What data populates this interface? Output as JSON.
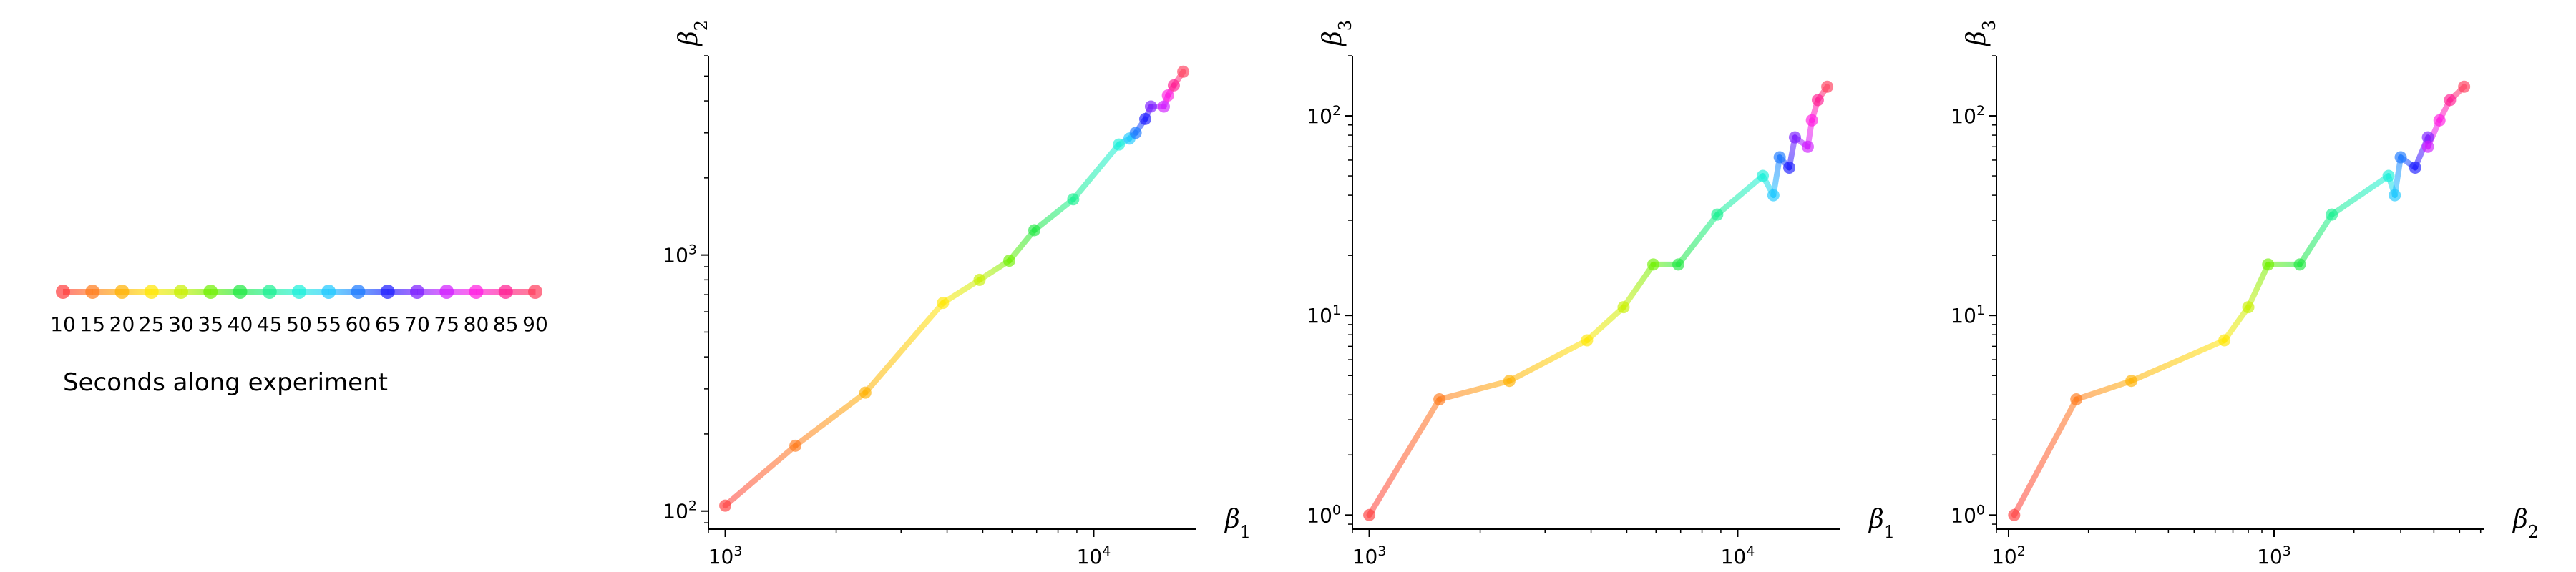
{
  "legend": {
    "title": "Seconds along experiment",
    "ticks": [
      "10",
      "15",
      "20",
      "25",
      "30",
      "35",
      "40",
      "45",
      "50",
      "55",
      "60",
      "65",
      "70",
      "75",
      "80",
      "85",
      "90"
    ],
    "colors": [
      "#ff3b3b",
      "#ff7a1a",
      "#ffb000",
      "#ffe600",
      "#c8f000",
      "#6ef000",
      "#1ee840",
      "#18f090",
      "#18f0d8",
      "#1cc8ff",
      "#1a78ff",
      "#1a1aff",
      "#7a1aff",
      "#d01aff",
      "#ff1ae0",
      "#ff1a90",
      "#ff3b5b"
    ]
  },
  "chart_data": [
    {
      "type": "line",
      "x_label_sym": "β",
      "x_label_sub": "1",
      "y_label_sym": "β",
      "y_label_sub": "2",
      "xscale": "log",
      "yscale": "log",
      "xlim": [
        900,
        19000
      ],
      "ylim": [
        85,
        6000
      ],
      "xticks": [
        {
          "v": 1000,
          "base": "10",
          "exp": "3"
        },
        {
          "v": 10000,
          "base": "10",
          "exp": "4"
        }
      ],
      "yticks": [
        {
          "v": 100,
          "base": "10",
          "exp": "2"
        },
        {
          "v": 1000,
          "base": "10",
          "exp": "3"
        }
      ],
      "series": [
        {
          "points": [
            [
              1000,
              105
            ],
            [
              1550,
              180
            ],
            [
              2400,
              290
            ],
            [
              3900,
              650
            ],
            [
              4900,
              800
            ],
            [
              5900,
              950
            ],
            [
              6900,
              1250
            ],
            [
              8800,
              1650
            ],
            [
              11700,
              2700
            ],
            [
              12500,
              2850
            ],
            [
              13000,
              3000
            ],
            [
              13800,
              3400
            ],
            [
              14300,
              3800
            ],
            [
              15500,
              3800
            ],
            [
              15900,
              4200
            ],
            [
              16500,
              4600
            ],
            [
              17500,
              5200
            ]
          ]
        }
      ]
    },
    {
      "type": "line",
      "x_label_sym": "β",
      "x_label_sub": "1",
      "y_label_sym": "β",
      "y_label_sub": "3",
      "xscale": "log",
      "yscale": "log",
      "xlim": [
        900,
        19000
      ],
      "ylim": [
        0.85,
        200
      ],
      "xticks": [
        {
          "v": 1000,
          "base": "10",
          "exp": "3"
        },
        {
          "v": 10000,
          "base": "10",
          "exp": "4"
        }
      ],
      "yticks": [
        {
          "v": 1,
          "base": "10",
          "exp": "0"
        },
        {
          "v": 10,
          "base": "10",
          "exp": "1"
        },
        {
          "v": 100,
          "base": "10",
          "exp": "2"
        }
      ],
      "series": [
        {
          "points": [
            [
              1000,
              1.0
            ],
            [
              1550,
              3.8
            ],
            [
              2400,
              4.7
            ],
            [
              3900,
              7.5
            ],
            [
              4900,
              11
            ],
            [
              5900,
              18
            ],
            [
              6900,
              18
            ],
            [
              8800,
              32
            ],
            [
              11700,
              50
            ],
            [
              12500,
              40
            ],
            [
              13000,
              62
            ],
            [
              13800,
              55
            ],
            [
              14300,
              78
            ],
            [
              15500,
              70
            ],
            [
              15900,
              95
            ],
            [
              16500,
              120
            ],
            [
              17500,
              140
            ]
          ]
        }
      ]
    },
    {
      "type": "line",
      "x_label_sym": "β",
      "x_label_sub": "2",
      "y_label_sym": "β",
      "y_label_sub": "3",
      "xscale": "log",
      "yscale": "log",
      "xlim": [
        90,
        6200
      ],
      "ylim": [
        0.85,
        200
      ],
      "xticks": [
        {
          "v": 100,
          "base": "10",
          "exp": "2"
        },
        {
          "v": 1000,
          "base": "10",
          "exp": "3"
        }
      ],
      "yticks": [
        {
          "v": 1,
          "base": "10",
          "exp": "0"
        },
        {
          "v": 10,
          "base": "10",
          "exp": "1"
        },
        {
          "v": 100,
          "base": "10",
          "exp": "2"
        }
      ],
      "series": [
        {
          "points": [
            [
              105,
              1.0
            ],
            [
              180,
              3.8
            ],
            [
              290,
              4.7
            ],
            [
              650,
              7.5
            ],
            [
              800,
              11
            ],
            [
              950,
              18
            ],
            [
              1250,
              18
            ],
            [
              1650,
              32
            ],
            [
              2700,
              50
            ],
            [
              2850,
              40
            ],
            [
              3000,
              62
            ],
            [
              3400,
              55
            ],
            [
              3800,
              78
            ],
            [
              3800,
              70
            ],
            [
              4200,
              95
            ],
            [
              4600,
              120
            ],
            [
              5200,
              140
            ]
          ]
        }
      ]
    }
  ]
}
